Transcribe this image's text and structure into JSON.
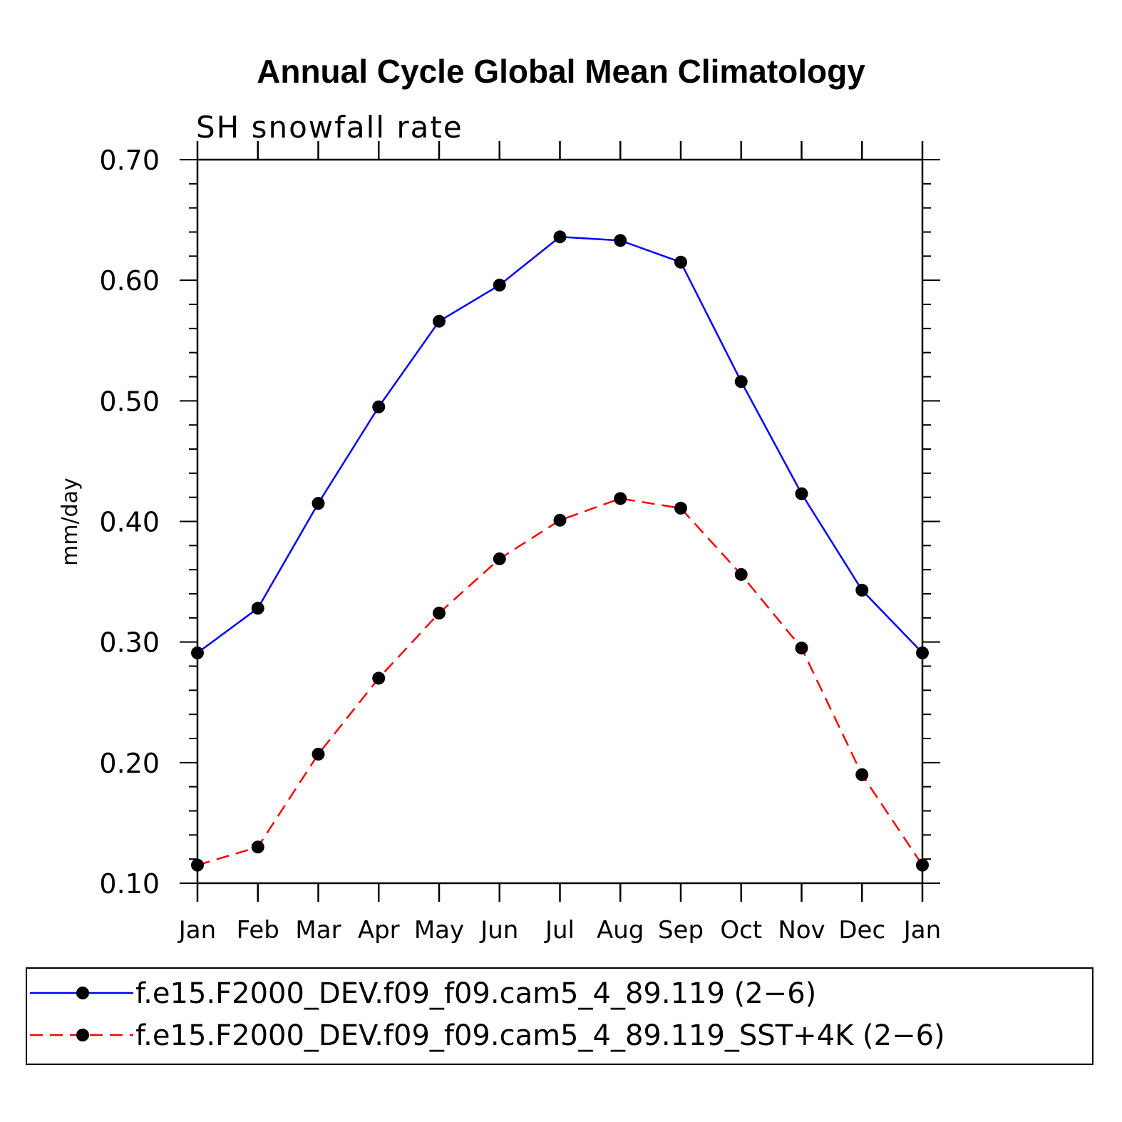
{
  "chart_data": {
    "type": "line",
    "title": "Annual Cycle Global Mean Climatology",
    "subtitle": "SH snowfall rate",
    "xlabel": "",
    "ylabel": "mm/day",
    "categories": [
      "Jan",
      "Feb",
      "Mar",
      "Apr",
      "May",
      "Jun",
      "Jul",
      "Aug",
      "Sep",
      "Oct",
      "Nov",
      "Dec",
      "Jan"
    ],
    "ylim": [
      0.1,
      0.7
    ],
    "yticks": [
      "0.10",
      "0.20",
      "0.30",
      "0.40",
      "0.50",
      "0.60",
      "0.70"
    ],
    "grid": false,
    "legend_position": "bottom",
    "series": [
      {
        "name": "f.e15.F2000_DEV.f09_f09.cam5_4_89.119 (2−6)",
        "color": "#0000ff",
        "style": "solid",
        "values": [
          0.291,
          0.328,
          0.415,
          0.495,
          0.566,
          0.596,
          0.636,
          0.633,
          0.615,
          0.516,
          0.423,
          0.343,
          0.291
        ]
      },
      {
        "name": "f.e15.F2000_DEV.f09_f09.cam5_4_89.119_SST+4K (2−6)",
        "color": "#ff0000",
        "style": "dashed",
        "values": [
          0.115,
          0.13,
          0.207,
          0.27,
          0.324,
          0.369,
          0.401,
          0.419,
          0.411,
          0.356,
          0.295,
          0.19,
          0.115
        ]
      }
    ]
  }
}
